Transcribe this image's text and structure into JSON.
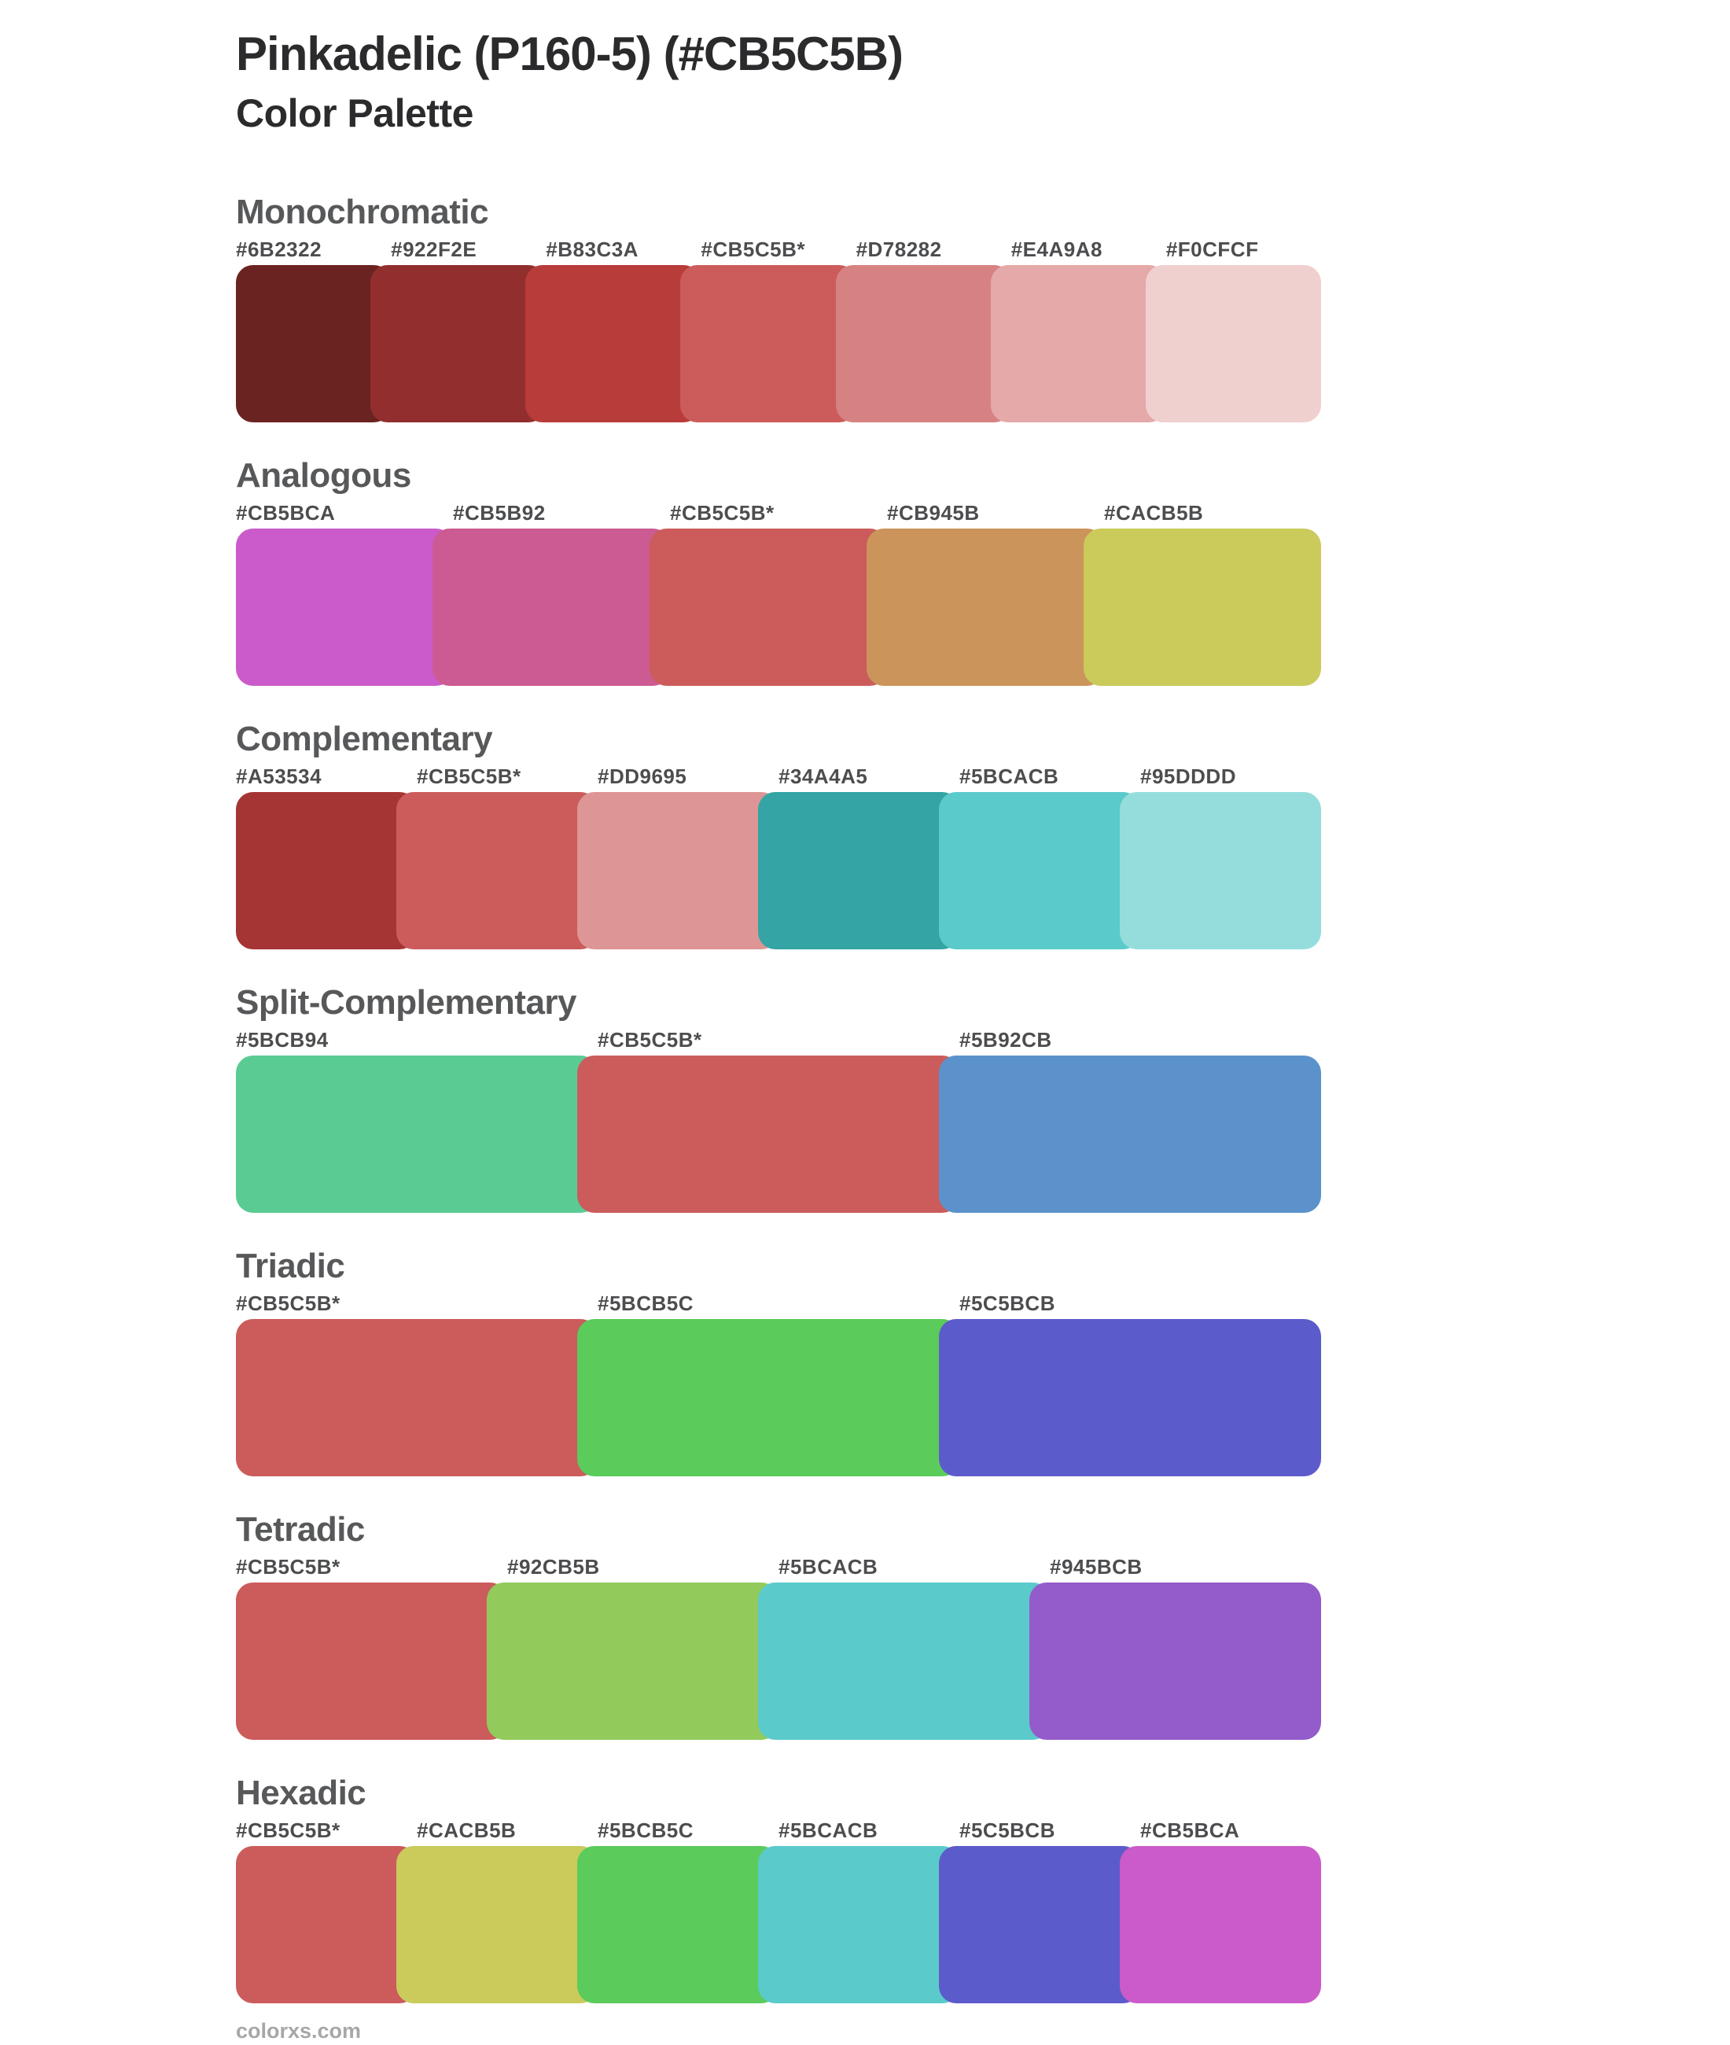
{
  "page": {
    "title": "Pinkadelic (P160-5) (#CB5C5B)",
    "subtitle": "Color Palette",
    "footer": "colorxs.com",
    "base_color": "#CB5C5B",
    "base_marker": "*"
  },
  "theme": {
    "background": "#FFFFFF",
    "title_text": "#2B2B2D",
    "heading_text": "#57585A",
    "hex_label_text": "#4C4D4F",
    "watermark_text": "#A7A7A7"
  },
  "sections": [
    {
      "name": "Monochromatic",
      "swatches": [
        {
          "label": "#6B2322",
          "color": "#6B2322"
        },
        {
          "label": "#922F2E",
          "color": "#922F2E"
        },
        {
          "label": "#B83C3A",
          "color": "#B83C3A"
        },
        {
          "label": "#CB5C5B*",
          "color": "#CB5C5B"
        },
        {
          "label": "#D78282",
          "color": "#D78282"
        },
        {
          "label": "#E4A9A8",
          "color": "#E4A9A8"
        },
        {
          "label": "#F0CFCF",
          "color": "#F0CFCF"
        }
      ]
    },
    {
      "name": "Analogous",
      "swatches": [
        {
          "label": "#CB5BCA",
          "color": "#CB5BCA"
        },
        {
          "label": "#CB5B92",
          "color": "#CB5B92"
        },
        {
          "label": "#CB5C5B*",
          "color": "#CB5C5B"
        },
        {
          "label": "#CB945B",
          "color": "#CB945B"
        },
        {
          "label": "#CACB5B",
          "color": "#CACB5B"
        }
      ]
    },
    {
      "name": "Complementary",
      "swatches": [
        {
          "label": "#A53534",
          "color": "#A53534"
        },
        {
          "label": "#CB5C5B*",
          "color": "#CB5C5B"
        },
        {
          "label": "#DD9695",
          "color": "#DD9695"
        },
        {
          "label": "#34A4A5",
          "color": "#34A4A5"
        },
        {
          "label": "#5BCACB",
          "color": "#5BCACB"
        },
        {
          "label": "#95DDDD",
          "color": "#95DDDD"
        }
      ]
    },
    {
      "name": "Split-Complementary",
      "swatches": [
        {
          "label": "#5BCB94",
          "color": "#5BCB94"
        },
        {
          "label": "#CB5C5B*",
          "color": "#CB5C5B"
        },
        {
          "label": "#5B92CB",
          "color": "#5B92CB"
        }
      ]
    },
    {
      "name": "Triadic",
      "swatches": [
        {
          "label": "#CB5C5B*",
          "color": "#CB5C5B"
        },
        {
          "label": "#5BCB5C",
          "color": "#5BCB5C"
        },
        {
          "label": "#5C5BCB",
          "color": "#5C5BCB"
        }
      ]
    },
    {
      "name": "Tetradic",
      "swatches": [
        {
          "label": "#CB5C5B*",
          "color": "#CB5C5B"
        },
        {
          "label": "#92CB5B",
          "color": "#92CB5B"
        },
        {
          "label": "#5BCACB",
          "color": "#5BCACB"
        },
        {
          "label": "#945BCB",
          "color": "#945BCB"
        }
      ]
    },
    {
      "name": "Hexadic",
      "swatches": [
        {
          "label": "#CB5C5B*",
          "color": "#CB5C5B"
        },
        {
          "label": "#CACB5B",
          "color": "#CACB5B"
        },
        {
          "label": "#5BCB5C",
          "color": "#5BCB5C"
        },
        {
          "label": "#5BCACB",
          "color": "#5BCACB"
        },
        {
          "label": "#5C5BCB",
          "color": "#5C5BCB"
        },
        {
          "label": "#CB5BCA",
          "color": "#CB5BCA"
        }
      ]
    }
  ]
}
